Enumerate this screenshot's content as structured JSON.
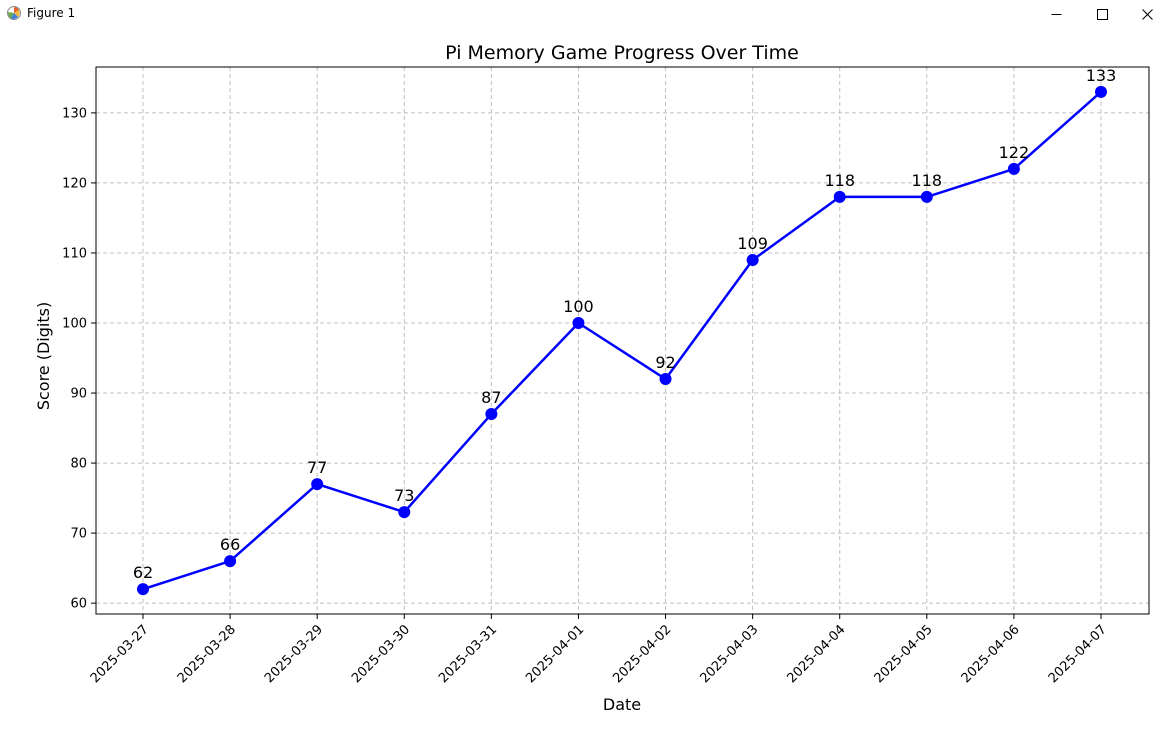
{
  "window": {
    "title": "Figure 1",
    "icons": {
      "app": "matplotlib-icon",
      "minimize": "minimize-icon",
      "maximize": "maximize-icon",
      "close": "close-icon"
    }
  },
  "chart_data": {
    "type": "line",
    "title": "Pi Memory Game Progress Over Time",
    "xlabel": "Date",
    "ylabel": "Score (Digits)",
    "categories": [
      "2025-03-27",
      "2025-03-28",
      "2025-03-29",
      "2025-03-30",
      "2025-03-31",
      "2025-04-01",
      "2025-04-02",
      "2025-04-03",
      "2025-04-04",
      "2025-04-05",
      "2025-04-06",
      "2025-04-07"
    ],
    "series": [
      {
        "name": "Score",
        "values": [
          62,
          66,
          77,
          73,
          87,
          100,
          92,
          109,
          118,
          118,
          122,
          133
        ],
        "color": "#0000ff",
        "marker": "circle"
      }
    ],
    "data_labels": [
      "62",
      "66",
      "77",
      "73",
      "87",
      "100",
      "92",
      "109",
      "118",
      "118",
      "122",
      "133"
    ],
    "yticks": [
      60,
      70,
      80,
      90,
      100,
      110,
      120,
      130
    ],
    "ylim": [
      58.45,
      136.55
    ],
    "grid": true,
    "grid_color": "#c0c0c0",
    "x_tick_rotation": 45
  }
}
